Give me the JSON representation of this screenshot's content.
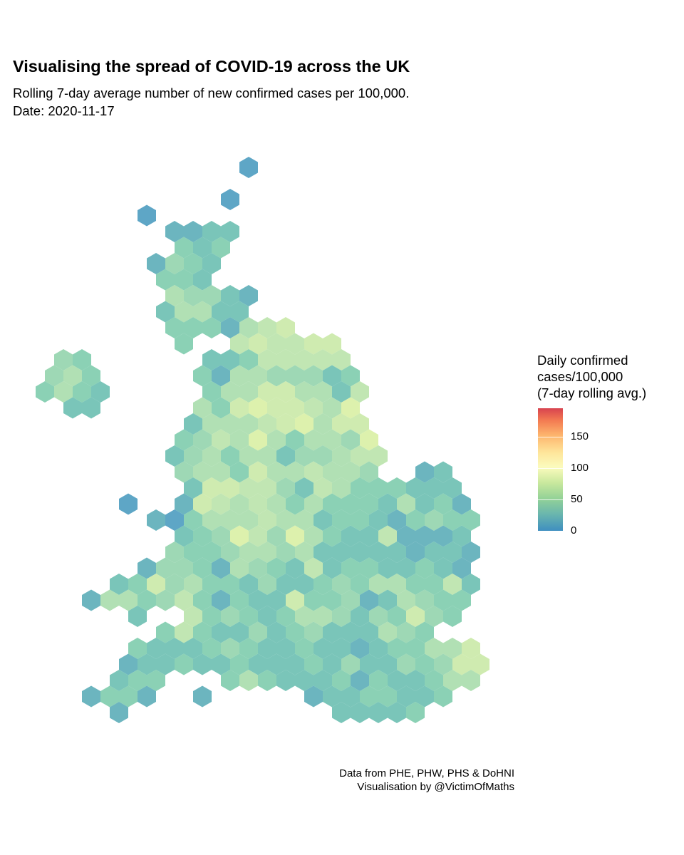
{
  "header": {
    "title": "Visualising the spread of COVID-19 across the UK",
    "subtitle_line1": "Rolling 7-day average number of new confirmed cases per 100,000.",
    "subtitle_line2": "Date: 2020-11-17"
  },
  "legend": {
    "title_line1": "Daily confirmed",
    "title_line2": "cases/100,000",
    "title_line3": "(7-day rolling avg.)",
    "range": [
      0,
      195
    ],
    "ticks": [
      {
        "value": 0,
        "label": "0"
      },
      {
        "value": 50,
        "label": "50"
      },
      {
        "value": 100,
        "label": "100"
      },
      {
        "value": 150,
        "label": "150"
      }
    ],
    "colors": [
      {
        "value": 0,
        "color": "#3288bd"
      },
      {
        "value": 30,
        "color": "#66c2a5"
      },
      {
        "value": 60,
        "color": "#abdda4"
      },
      {
        "value": 95,
        "color": "#e6f598"
      },
      {
        "value": 110,
        "color": "#ffffbf"
      },
      {
        "value": 140,
        "color": "#fee08b"
      },
      {
        "value": 160,
        "color": "#fdae61"
      },
      {
        "value": 175,
        "color": "#f46d43"
      },
      {
        "value": 195,
        "color": "#d53e4f"
      }
    ]
  },
  "map": {
    "note": "hex cartogram rows: grid row, starting grid column, per-cell approx case rate in tens (value = digit*10+5), '.' = no area",
    "rows": [
      {
        "r": 0,
        "c": 26,
        "v": "0"
      },
      {
        "r": 2,
        "c": 24,
        "v": "0"
      },
      {
        "r": 3,
        "c": 15,
        "v": "0"
      },
      {
        "r": 4,
        "c": 18,
        "v": "1122"
      },
      {
        "r": 5,
        "c": 19,
        "v": "323"
      },
      {
        "r": 6,
        "c": 16,
        "v": "1432"
      },
      {
        "r": 7,
        "c": 17,
        "v": "332"
      },
      {
        "r": 8,
        "c": 18,
        "v": "54421"
      },
      {
        "r": 9,
        "c": 17,
        "v": "25522"
      },
      {
        "r": 10,
        "c": 18,
        "v": "3331567"
      },
      {
        "r": 11,
        "c": 19,
        "v": "3..676677"
      },
      {
        "r": 12,
        "c": 6,
        "v": "43......22366666"
      },
      {
        "r": 13,
        "c": 5,
        "v": "453.....315544423"
      },
      {
        "r": 14,
        "c": 4,
        "v": "3532.....355775526"
      },
      {
        "r": 15,
        "c": 7,
        "v": "22.....537877658"
      },
      {
        "r": 16,
        "c": 20,
        "v": "2555678577"
      },
      {
        "r": 17,
        "c": 19,
        "v": "34658535548"
      },
      {
        "r": 18,
        "c": 18,
        "v": "245355244566"
      },
      {
        "r": 19,
        "c": 19,
        "v": "45537556554..12"
      },
      {
        "r": 20,
        "c": 20,
        "v": "277664265333222"
      },
      {
        "r": 21,
        "c": 13,
        "v": "0..1765653533325231"
      },
      {
        "r": 22,
        "c": 16,
        "v": "103555655233213433"
      },
      {
        "r": 23,
        "c": 19,
        "v": "2348648532261112"
      },
      {
        "r": 24,
        "c": 18,
        "v": "43345545222221221"
      },
      {
        "r": 25,
        "c": 15,
        "v": "144315432623322321"
      },
      {
        "r": 26,
        "c": 12,
        "v": "23745332422343553362"
      },
      {
        "r": 27,
        "c": 9,
        "v": "155346313227334125433"
      },
      {
        "r": 28,
        "c": 14,
        "v": "2..634323554243743"
      },
      {
        "r": 29,
        "c": 17,
        "v": "363224234222543"
      },
      {
        "r": 30,
        "c": 14,
        "v": "3222343223221233557"
      },
      {
        "r": 31,
        "c": 13,
        "v": "12232232223242243477"
      },
      {
        "r": 32,
        "c": 12,
        "v": "233...35322231322355"
      },
      {
        "r": 33,
        "c": 9,
        "v": "1331..1.....12233223"
      },
      {
        "r": 34,
        "c": 12,
        "v": "1...........22223"
      }
    ]
  },
  "caption": {
    "line1": "Data from PHE, PHW, PHS & DoHNI",
    "line2": "Visualisation by @VictimOfMaths"
  }
}
